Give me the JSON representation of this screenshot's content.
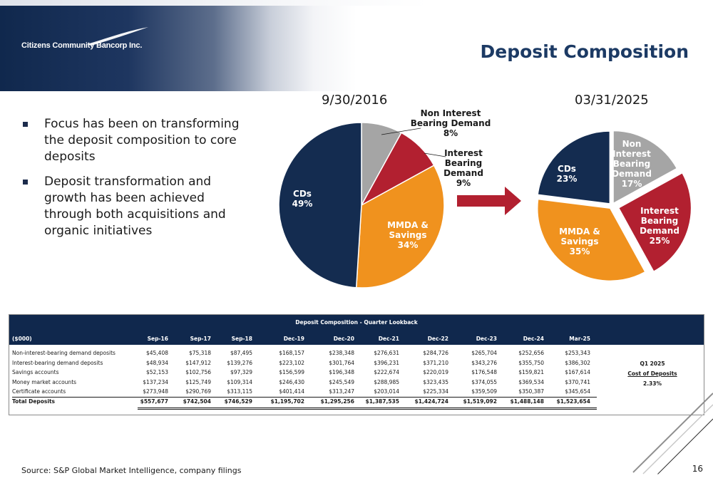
{
  "header": {
    "company_name": "Citizens Community Bancorp Inc.",
    "title": "Deposit Composition"
  },
  "bullets": [
    "Focus has been on transforming the deposit composition to core deposits",
    "Deposit transformation and growth has been achieved through both acquisitions and organic initiatives"
  ],
  "chart_data": [
    {
      "type": "pie",
      "title": "9/30/2016",
      "slices": [
        {
          "label": "Non Interest Bearing Demand",
          "value": 8,
          "display": "8%",
          "color": "#a5a5a5"
        },
        {
          "label": "Interest Bearing Demand",
          "value": 9,
          "display": "9%",
          "color": "#b22030"
        },
        {
          "label": "MMDA & Savings",
          "value": 34,
          "display": "34%",
          "color": "#f0921e"
        },
        {
          "label": "CDs",
          "value": 49,
          "display": "49%",
          "color": "#142c50"
        }
      ]
    },
    {
      "type": "pie",
      "title": "03/31/2025",
      "slices": [
        {
          "label": "Non Interest Bearing Demand",
          "value": 17,
          "display": "17%",
          "color": "#a5a5a5"
        },
        {
          "label": "Interest Bearing Demand",
          "value": 25,
          "display": "25%",
          "color": "#b22030"
        },
        {
          "label": "MMDA & Savings",
          "value": 35,
          "display": "35%",
          "color": "#f0921e"
        },
        {
          "label": "CDs",
          "value": 23,
          "display": "23%",
          "color": "#142c50"
        }
      ]
    },
    {
      "type": "table",
      "title": "Deposit Composition - Quarter Lookback",
      "unit_label": "($000)",
      "columns": [
        "Sep-16",
        "Sep-17",
        "Sep-18",
        "Dec-19",
        "Dec-20",
        "Dec-21",
        "Dec-22",
        "Dec-23",
        "Dec-24",
        "Mar-25"
      ],
      "rows": [
        {
          "label": "Non-interest-bearing demand deposits",
          "values": [
            "$45,408",
            "$75,318",
            "$87,495",
            "$168,157",
            "$238,348",
            "$276,631",
            "$284,726",
            "$265,704",
            "$252,656",
            "$253,343"
          ]
        },
        {
          "label": "Interest-bearing demand deposits",
          "values": [
            "$48,934",
            "$147,912",
            "$139,276",
            "$223,102",
            "$301,764",
            "$396,231",
            "$371,210",
            "$343,276",
            "$355,750",
            "$386,302"
          ]
        },
        {
          "label": "Savings accounts",
          "values": [
            "$52,153",
            "$102,756",
            "$97,329",
            "$156,599",
            "$196,348",
            "$222,674",
            "$220,019",
            "$176,548",
            "$159,821",
            "$167,614"
          ]
        },
        {
          "label": "Money market accounts",
          "values": [
            "$137,234",
            "$125,749",
            "$109,314",
            "$246,430",
            "$245,549",
            "$288,985",
            "$323,435",
            "$374,055",
            "$369,534",
            "$370,741"
          ]
        },
        {
          "label": "Certificate accounts",
          "values": [
            "$273,948",
            "$290,769",
            "$313,115",
            "$401,414",
            "$313,247",
            "$203,014",
            "$225,334",
            "$359,509",
            "$350,387",
            "$345,654"
          ]
        },
        {
          "label": "Total Deposits",
          "values": [
            "$557,677",
            "$742,504",
            "$746,529",
            "$1,195,702",
            "$1,295,256",
            "$1,387,535",
            "$1,424,724",
            "$1,519,092",
            "$1,488,148",
            "$1,523,654"
          ],
          "bold": true
        }
      ],
      "side_note": {
        "line1": "Q1 2025",
        "line2": "Cost of Deposits",
        "value": "2.33%"
      }
    }
  ],
  "colors": {
    "navy": "#10284d",
    "title_blue": "#1c3a64",
    "arrow_red": "#b22030"
  },
  "footer": {
    "source": "Source: S&P Global Market Intelligence, company filings",
    "page": "16"
  }
}
